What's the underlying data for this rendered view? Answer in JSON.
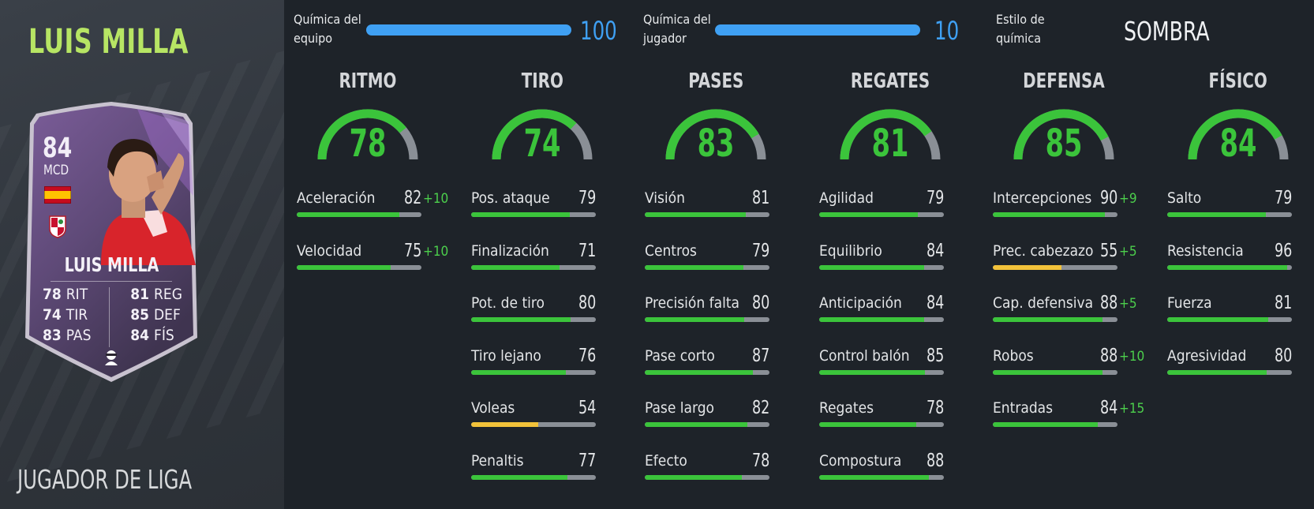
{
  "player": {
    "name": "LUIS MILLA",
    "league_label": "JUGADOR DE LIGA",
    "card": {
      "rating": "84",
      "position": "MCD",
      "name": "LUIS MILLA",
      "stats_left": [
        {
          "value": "78",
          "label": "RIT"
        },
        {
          "value": "74",
          "label": "TIR"
        },
        {
          "value": "83",
          "label": "PAS"
        }
      ],
      "stats_right": [
        {
          "value": "81",
          "label": "REG"
        },
        {
          "value": "85",
          "label": "DEF"
        },
        {
          "value": "84",
          "label": "FÍS"
        }
      ],
      "flag_icon": "spain-flag-icon",
      "club_icon": "granada-crest-icon",
      "chem_icon": "shadow-chemistry-icon"
    }
  },
  "chemistry": {
    "team": {
      "label_line1": "Química del",
      "label_line2": "equipo",
      "value": "100",
      "fill": 1.0
    },
    "player": {
      "label_line1": "Química del",
      "label_line2": "jugador",
      "value": "10",
      "fill": 1.0
    },
    "style": {
      "label_line1": "Estilo de",
      "label_line2": "química",
      "value": "SOMBRA"
    }
  },
  "colors": {
    "accent_green": "#3bc43b",
    "boost_green": "#4ccf4c",
    "warn_yellow": "#f2c23a",
    "chem_blue": "#3fa0f3",
    "name_green": "#b7e564"
  },
  "categories": [
    {
      "title": "RITMO",
      "value": 78,
      "attributes": [
        {
          "label": "Aceleración",
          "value": 82,
          "boost": "+10"
        },
        {
          "label": "Velocidad",
          "value": 75,
          "boost": "+10"
        }
      ]
    },
    {
      "title": "TIRO",
      "value": 74,
      "attributes": [
        {
          "label": "Pos. ataque",
          "value": 79,
          "boost": ""
        },
        {
          "label": "Finalización",
          "value": 71,
          "boost": ""
        },
        {
          "label": "Pot. de tiro",
          "value": 80,
          "boost": ""
        },
        {
          "label": "Tiro lejano",
          "value": 76,
          "boost": ""
        },
        {
          "label": "Voleas",
          "value": 54,
          "boost": ""
        },
        {
          "label": "Penaltis",
          "value": 77,
          "boost": ""
        }
      ]
    },
    {
      "title": "PASES",
      "value": 83,
      "attributes": [
        {
          "label": "Visión",
          "value": 81,
          "boost": ""
        },
        {
          "label": "Centros",
          "value": 79,
          "boost": ""
        },
        {
          "label": "Precisión falta",
          "value": 80,
          "boost": ""
        },
        {
          "label": "Pase corto",
          "value": 87,
          "boost": ""
        },
        {
          "label": "Pase largo",
          "value": 82,
          "boost": ""
        },
        {
          "label": "Efecto",
          "value": 78,
          "boost": ""
        }
      ]
    },
    {
      "title": "REGATES",
      "value": 81,
      "attributes": [
        {
          "label": "Agilidad",
          "value": 79,
          "boost": ""
        },
        {
          "label": "Equilibrio",
          "value": 84,
          "boost": ""
        },
        {
          "label": "Anticipación",
          "value": 84,
          "boost": ""
        },
        {
          "label": "Control balón",
          "value": 85,
          "boost": ""
        },
        {
          "label": "Regates",
          "value": 78,
          "boost": ""
        },
        {
          "label": "Compostura",
          "value": 88,
          "boost": ""
        }
      ]
    },
    {
      "title": "DEFENSA",
      "value": 85,
      "attributes": [
        {
          "label": "Intercepciones",
          "value": 90,
          "boost": "+9"
        },
        {
          "label": "Prec. cabezazo",
          "value": 55,
          "boost": "+5"
        },
        {
          "label": "Cap. defensiva",
          "value": 88,
          "boost": "+5"
        },
        {
          "label": "Robos",
          "value": 88,
          "boost": "+10"
        },
        {
          "label": "Entradas",
          "value": 84,
          "boost": "+15"
        }
      ]
    },
    {
      "title": "FÍSICO",
      "value": 84,
      "attributes": [
        {
          "label": "Salto",
          "value": 79,
          "boost": ""
        },
        {
          "label": "Resistencia",
          "value": 96,
          "boost": ""
        },
        {
          "label": "Fuerza",
          "value": 81,
          "boost": ""
        },
        {
          "label": "Agresividad",
          "value": 80,
          "boost": ""
        }
      ]
    }
  ]
}
